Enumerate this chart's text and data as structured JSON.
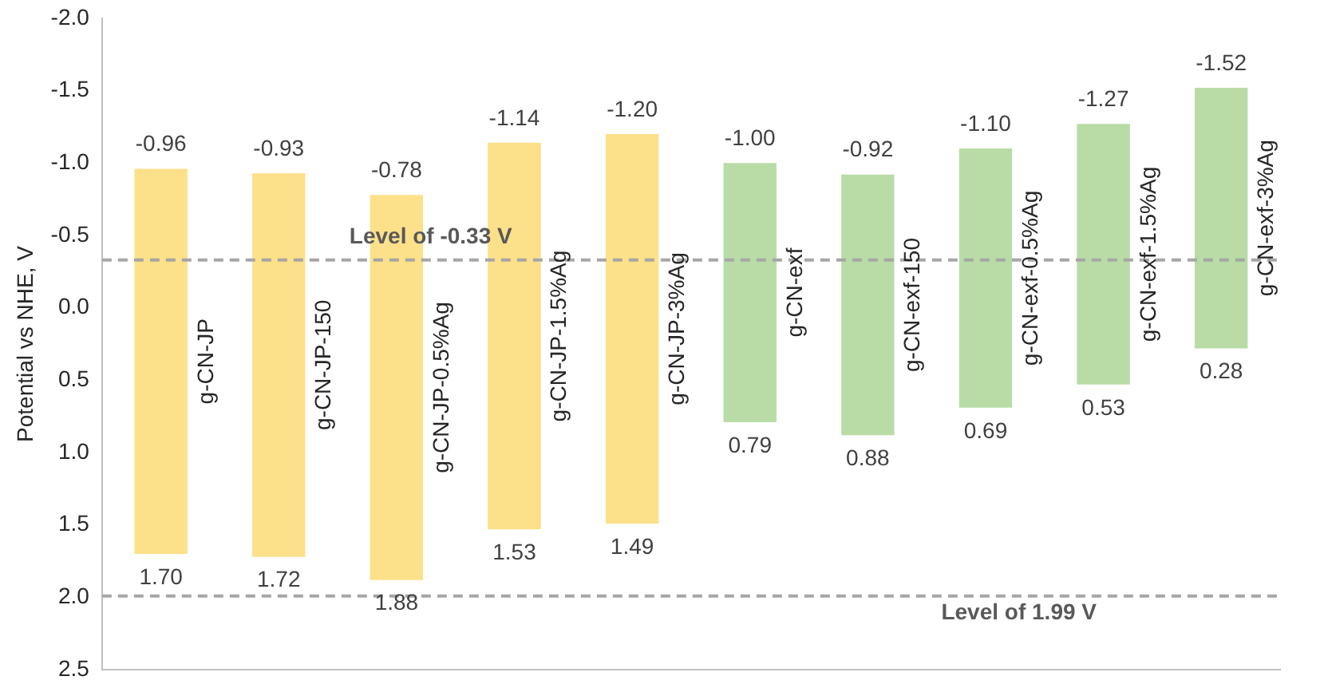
{
  "chart_data": {
    "type": "bar",
    "ylabel": "Potential vs NHE, V",
    "categories": [
      "g-CN-JP",
      "g-CN-JP-150",
      "g-CN-JP-0.5%Ag",
      "g-CN-JP-1.5%Ag",
      "g-CN-JP-3%Ag",
      "g-CN-exf",
      "g-CN-exf-150",
      "g-CN-exf-0.5%Ag",
      "g-CN-exf-1.5%Ag",
      "g-CN-exf-3%Ag"
    ],
    "base": [
      -0.96,
      -0.93,
      -0.78,
      -1.14,
      -1.2,
      -1.0,
      -0.92,
      -1.1,
      -1.27,
      -1.52
    ],
    "values": [
      2.66,
      2.65,
      2.66,
      2.67,
      2.69,
      1.79,
      1.8,
      1.79,
      1.8,
      1.8
    ],
    "colors": [
      "#fce08a",
      "#fce08a",
      "#fce08a",
      "#fce08a",
      "#fce08a",
      "#b9dca6",
      "#b9dca6",
      "#b9dca6",
      "#b9dca6",
      "#b9dca6"
    ],
    "ylim": [
      2.5,
      -2.0
    ],
    "yticks": [
      {
        "value": -2.0,
        "label": "-2.0"
      },
      {
        "value": -1.5,
        "label": "-1.5"
      },
      {
        "value": -1.0,
        "label": "-1.0"
      },
      {
        "value": -0.5,
        "label": "-0.5"
      },
      {
        "value": 0,
        "label": "0.0"
      },
      {
        "value": 0.5,
        "label": "0.5"
      },
      {
        "value": 1.0,
        "label": "1.0"
      },
      {
        "value": 1.5,
        "label": "1.5"
      },
      {
        "value": 2.0,
        "label": "2.0"
      },
      {
        "value": 2.5,
        "label": "2.5"
      }
    ],
    "grid": false,
    "legend": false,
    "tick_labels": "y",
    "ref_lines": [
      {
        "axis": "y",
        "value": -0.33,
        "label": "Level of -0.33 V",
        "color": "#a6a6a6",
        "line_style": "dashed"
      },
      {
        "axis": "y",
        "value": 1.99,
        "label": "Level of 1.99 V",
        "color": "#a6a6a6",
        "line_style": "dashed"
      }
    ],
    "annotations": [
      "-0.96",
      "1.70",
      "-0.93",
      "1.72",
      "-0.78",
      "1.88",
      "-1.14",
      "1.53",
      "-1.20",
      "1.49",
      "-1.00",
      "0.79",
      "-0.92",
      "0.88",
      "-1.10",
      "0.69",
      "-1.27",
      "0.53",
      "-1.52",
      "0.28"
    ]
  }
}
